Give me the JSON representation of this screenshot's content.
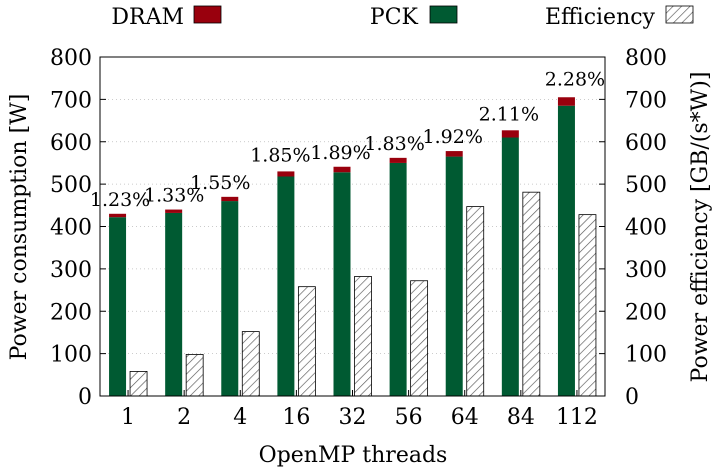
{
  "chart_data": {
    "type": "bar",
    "categories": [
      "1",
      "2",
      "4",
      "16",
      "32",
      "56",
      "64",
      "84",
      "112"
    ],
    "series": [
      {
        "name": "PCK",
        "axis": "left",
        "stacked": true,
        "color": "#005a32",
        "values": [
          422,
          432,
          460,
          518,
          528,
          550,
          565,
          610,
          685
        ]
      },
      {
        "name": "DRAM",
        "axis": "left",
        "stacked": true,
        "color": "#99000d",
        "values": [
          8,
          8,
          10,
          12,
          13,
          12,
          13,
          17,
          20
        ]
      },
      {
        "name": "Efficiency",
        "axis": "right",
        "pattern": "hatched",
        "values": [
          58,
          98,
          152,
          258,
          282,
          272,
          447,
          481,
          428
        ]
      }
    ],
    "annotations": [
      "1.23%",
      "1.33%",
      "1.55%",
      "1.85%",
      "1.89%",
      "1.83%",
      "1.92%",
      "2.11%",
      "2.28%"
    ],
    "xlabel": "OpenMP threads",
    "ylabel": "Power consumption [W]",
    "y2label": "Power efficiency [GB/(s*W)]",
    "ylim": [
      0,
      800
    ],
    "y2lim": [
      0,
      800
    ],
    "yticks": [
      0,
      100,
      200,
      300,
      400,
      500,
      600,
      700,
      800
    ],
    "y2ticks": [
      0,
      100,
      200,
      300,
      400,
      500,
      600,
      700,
      800
    ],
    "legend": {
      "position": "top",
      "entries": [
        "DRAM",
        "PCK",
        "Efficiency"
      ]
    },
    "grid": "horizontal dotted"
  }
}
